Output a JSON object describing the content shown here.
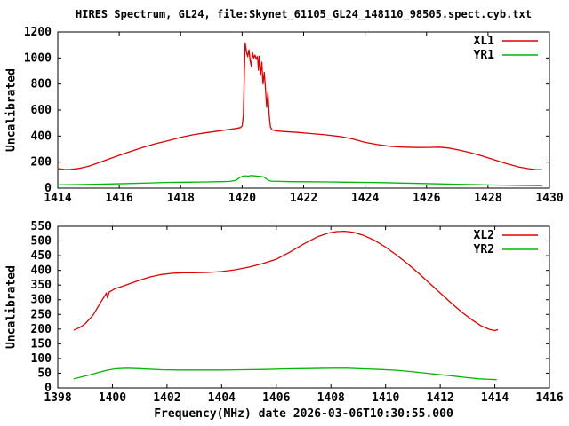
{
  "title": "HIRES Spectrum, GL24, file:Skynet_61105_GL24_148110_98505.spect.cyb.txt",
  "xlabel": "Frequency(MHz) date 2026-03-06T10:30:55.000",
  "colors": {
    "background": "#ffffff",
    "border": "#000000",
    "series_red": "#e00000",
    "series_green": "#00b800"
  },
  "chart_data": [
    {
      "type": "line",
      "panel": "top",
      "ylabel": "Uncalibrated",
      "xlim": [
        1414,
        1430
      ],
      "ylim": [
        0,
        1200
      ],
      "xticks": [
        1414,
        1416,
        1418,
        1420,
        1422,
        1424,
        1426,
        1428,
        1430
      ],
      "yticks": [
        0,
        200,
        400,
        600,
        800,
        1000,
        1200
      ],
      "legend_position": "top-right",
      "series": [
        {
          "name": "XL1",
          "color": "#e00000",
          "points": [
            [
              1414.0,
              150
            ],
            [
              1414.2,
              144
            ],
            [
              1414.4,
              143
            ],
            [
              1414.7,
              152
            ],
            [
              1415.0,
              168
            ],
            [
              1415.3,
              192
            ],
            [
              1415.6,
              218
            ],
            [
              1416.0,
              252
            ],
            [
              1416.4,
              285
            ],
            [
              1416.8,
              315
            ],
            [
              1417.2,
              342
            ],
            [
              1417.6,
              365
            ],
            [
              1418.0,
              390
            ],
            [
              1418.4,
              410
            ],
            [
              1418.8,
              425
            ],
            [
              1419.2,
              438
            ],
            [
              1419.5,
              448
            ],
            [
              1419.8,
              458
            ],
            [
              1419.95,
              465
            ],
            [
              1420.0,
              478
            ],
            [
              1420.04,
              560
            ],
            [
              1420.07,
              860
            ],
            [
              1420.1,
              1116
            ],
            [
              1420.14,
              1050
            ],
            [
              1420.18,
              1010
            ],
            [
              1420.22,
              1062
            ],
            [
              1420.26,
              980
            ],
            [
              1420.3,
              934
            ],
            [
              1420.34,
              1040
            ],
            [
              1420.38,
              1000
            ],
            [
              1420.42,
              1022
            ],
            [
              1420.46,
              990
            ],
            [
              1420.5,
              1012
            ],
            [
              1420.53,
              906
            ],
            [
              1420.56,
              1014
            ],
            [
              1420.6,
              866
            ],
            [
              1420.64,
              968
            ],
            [
              1420.68,
              800
            ],
            [
              1420.72,
              890
            ],
            [
              1420.76,
              764
            ],
            [
              1420.8,
              620
            ],
            [
              1420.84,
              735
            ],
            [
              1420.88,
              560
            ],
            [
              1420.92,
              470
            ],
            [
              1420.97,
              448
            ],
            [
              1421.1,
              440
            ],
            [
              1421.4,
              434
            ],
            [
              1421.8,
              428
            ],
            [
              1422.2,
              420
            ],
            [
              1422.7,
              410
            ],
            [
              1423.2,
              396
            ],
            [
              1423.6,
              378
            ],
            [
              1424.0,
              352
            ],
            [
              1424.4,
              335
            ],
            [
              1424.8,
              322
            ],
            [
              1425.2,
              316
            ],
            [
              1425.7,
              312
            ],
            [
              1426.1,
              313
            ],
            [
              1426.4,
              315
            ],
            [
              1426.7,
              309
            ],
            [
              1427.0,
              296
            ],
            [
              1427.4,
              274
            ],
            [
              1427.8,
              248
            ],
            [
              1428.2,
              218
            ],
            [
              1428.6,
              188
            ],
            [
              1429.0,
              163
            ],
            [
              1429.3,
              150
            ],
            [
              1429.55,
              143
            ],
            [
              1429.75,
              141
            ]
          ]
        },
        {
          "name": "YR1",
          "color": "#00b800",
          "points": [
            [
              1414.0,
              25
            ],
            [
              1414.6,
              27
            ],
            [
              1415.2,
              30
            ],
            [
              1415.8,
              33
            ],
            [
              1416.4,
              36
            ],
            [
              1417.0,
              40
            ],
            [
              1417.6,
              44
            ],
            [
              1418.2,
              46
            ],
            [
              1418.8,
              48
            ],
            [
              1419.3,
              50
            ],
            [
              1419.6,
              52
            ],
            [
              1419.8,
              60
            ],
            [
              1419.9,
              78
            ],
            [
              1420.0,
              90
            ],
            [
              1420.1,
              95
            ],
            [
              1420.2,
              92
            ],
            [
              1420.3,
              97
            ],
            [
              1420.4,
              94
            ],
            [
              1420.5,
              92
            ],
            [
              1420.6,
              90
            ],
            [
              1420.7,
              86
            ],
            [
              1420.78,
              72
            ],
            [
              1420.85,
              60
            ],
            [
              1420.95,
              54
            ],
            [
              1421.2,
              52
            ],
            [
              1421.6,
              50
            ],
            [
              1422.2,
              49
            ],
            [
              1422.8,
              48
            ],
            [
              1423.4,
              46
            ],
            [
              1424.0,
              44
            ],
            [
              1424.6,
              42
            ],
            [
              1425.2,
              39
            ],
            [
              1425.8,
              36
            ],
            [
              1426.4,
              33
            ],
            [
              1427.0,
              30
            ],
            [
              1427.6,
              27
            ],
            [
              1428.2,
              24
            ],
            [
              1428.8,
              22
            ],
            [
              1429.3,
              20
            ],
            [
              1429.75,
              19
            ]
          ]
        }
      ]
    },
    {
      "type": "line",
      "panel": "bottom",
      "ylabel": "Uncalibrated",
      "xlabel": "Frequency(MHz) date 2026-03-06T10:30:55.000",
      "xlim": [
        1398,
        1416
      ],
      "ylim": [
        0,
        550
      ],
      "xticks": [
        1398,
        1400,
        1402,
        1404,
        1406,
        1408,
        1410,
        1412,
        1414,
        1416
      ],
      "yticks": [
        0,
        50,
        100,
        150,
        200,
        250,
        300,
        350,
        400,
        450,
        500,
        550
      ],
      "legend_position": "top-right",
      "series": [
        {
          "name": "XL2",
          "color": "#e00000",
          "points": [
            [
              1398.6,
              197
            ],
            [
              1398.8,
              205
            ],
            [
              1399.0,
              218
            ],
            [
              1399.3,
              248
            ],
            [
              1399.55,
              288
            ],
            [
              1399.7,
              310
            ],
            [
              1399.78,
              323
            ],
            [
              1399.82,
              306
            ],
            [
              1399.88,
              326
            ],
            [
              1400.1,
              338
            ],
            [
              1400.4,
              347
            ],
            [
              1400.7,
              357
            ],
            [
              1401.0,
              367
            ],
            [
              1401.4,
              378
            ],
            [
              1401.8,
              386
            ],
            [
              1402.2,
              390
            ],
            [
              1402.6,
              392
            ],
            [
              1403.0,
              392
            ],
            [
              1403.5,
              393
            ],
            [
              1404.0,
              396
            ],
            [
              1404.5,
              402
            ],
            [
              1405.0,
              411
            ],
            [
              1405.5,
              423
            ],
            [
              1406.0,
              438
            ],
            [
              1406.5,
              462
            ],
            [
              1407.0,
              490
            ],
            [
              1407.5,
              514
            ],
            [
              1407.9,
              527
            ],
            [
              1408.2,
              532
            ],
            [
              1408.5,
              533
            ],
            [
              1408.8,
              530
            ],
            [
              1409.2,
              519
            ],
            [
              1409.6,
              502
            ],
            [
              1410.0,
              479
            ],
            [
              1410.4,
              452
            ],
            [
              1410.8,
              423
            ],
            [
              1411.2,
              391
            ],
            [
              1411.6,
              357
            ],
            [
              1412.0,
              323
            ],
            [
              1412.4,
              289
            ],
            [
              1412.8,
              257
            ],
            [
              1413.2,
              229
            ],
            [
              1413.5,
              211
            ],
            [
              1413.8,
              199
            ],
            [
              1414.0,
              195
            ],
            [
              1414.1,
              198
            ]
          ]
        },
        {
          "name": "YR2",
          "color": "#00b800",
          "points": [
            [
              1398.6,
              31
            ],
            [
              1398.9,
              38
            ],
            [
              1399.2,
              45
            ],
            [
              1399.5,
              53
            ],
            [
              1399.8,
              60
            ],
            [
              1400.1,
              65
            ],
            [
              1400.5,
              67
            ],
            [
              1400.9,
              66
            ],
            [
              1401.3,
              64
            ],
            [
              1401.8,
              62
            ],
            [
              1402.4,
              61
            ],
            [
              1403.2,
              61
            ],
            [
              1404.0,
              61
            ],
            [
              1404.8,
              62
            ],
            [
              1405.6,
              63
            ],
            [
              1406.4,
              65
            ],
            [
              1407.2,
              66
            ],
            [
              1408.0,
              67
            ],
            [
              1408.6,
              67
            ],
            [
              1409.2,
              65
            ],
            [
              1409.8,
              63
            ],
            [
              1410.4,
              60
            ],
            [
              1410.9,
              56
            ],
            [
              1411.4,
              51
            ],
            [
              1411.9,
              46
            ],
            [
              1412.4,
              41
            ],
            [
              1412.9,
              36
            ],
            [
              1413.4,
              31
            ],
            [
              1413.8,
              29
            ],
            [
              1414.05,
              28
            ]
          ]
        }
      ]
    }
  ]
}
